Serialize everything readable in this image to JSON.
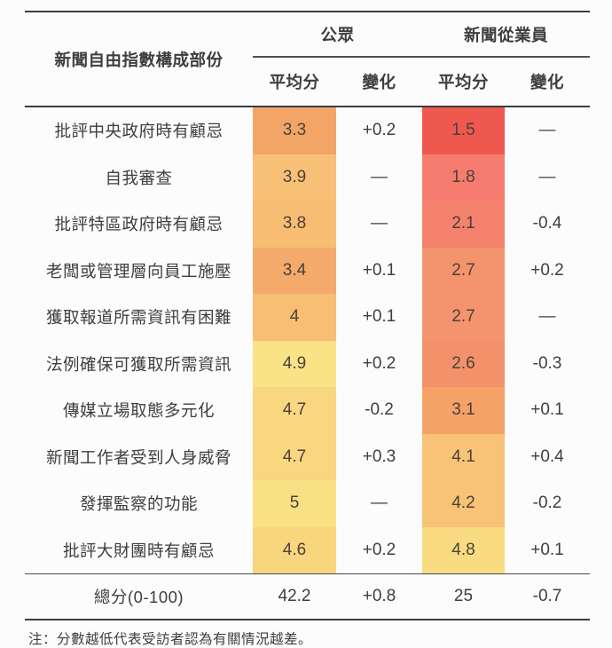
{
  "table": {
    "corner_label": "新聞自由指數構成部份",
    "groups": [
      {
        "label": "公眾"
      },
      {
        "label": "新聞從業員"
      }
    ],
    "sub_headers": [
      "平均分",
      "變化",
      "平均分",
      "變化"
    ],
    "rows": [
      {
        "label": "批評中央政府時有顧忌",
        "public_avg": "3.3",
        "public_color": "#f2a567",
        "public_change": "+0.2",
        "journalist_avg": "1.5",
        "journalist_color": "#ee584e",
        "journalist_change": "—"
      },
      {
        "label": "自我審查",
        "public_avg": "3.9",
        "public_color": "#f8c076",
        "public_change": "—",
        "journalist_avg": "1.8",
        "journalist_color": "#f57c6e",
        "journalist_change": "—"
      },
      {
        "label": "批評特區政府時有顧忌",
        "public_avg": "3.8",
        "public_color": "#f7bd73",
        "public_change": "—",
        "journalist_avg": "2.1",
        "journalist_color": "#f5826c",
        "journalist_change": "-0.4"
      },
      {
        "label": "老闆或管理層向員工施壓",
        "public_avg": "3.4",
        "public_color": "#f3aa6b",
        "public_change": "+0.1",
        "journalist_avg": "2.7",
        "journalist_color": "#f4946e",
        "journalist_change": "+0.2"
      },
      {
        "label": "獲取報道所需資訊有困難",
        "public_avg": "4",
        "public_color": "#f7be74",
        "public_change": "+0.1",
        "journalist_avg": "2.7",
        "journalist_color": "#f4946e",
        "journalist_change": "—"
      },
      {
        "label": "法例確保可獲取所需資訊",
        "public_avg": "4.9",
        "public_color": "#fae287",
        "public_change": "+0.2",
        "journalist_avg": "2.6",
        "journalist_color": "#f3916b",
        "journalist_change": "-0.3"
      },
      {
        "label": "傳媒立場取態多元化",
        "public_avg": "4.7",
        "public_color": "#f9d680",
        "public_change": "-0.2",
        "journalist_avg": "3.1",
        "journalist_color": "#f5a269",
        "journalist_change": "+0.1"
      },
      {
        "label": "新聞工作者受到人身威脅",
        "public_avg": "4.7",
        "public_color": "#f9d680",
        "public_change": "+0.3",
        "journalist_avg": "4.1",
        "journalist_color": "#f8c377",
        "journalist_change": "+0.4"
      },
      {
        "label": "發揮監察的功能",
        "public_avg": "5",
        "public_color": "#fae085",
        "public_change": "—",
        "journalist_avg": "4.2",
        "journalist_color": "#f8c376",
        "journalist_change": "-0.2"
      },
      {
        "label": "批評大財團時有顧忌",
        "public_avg": "4.6",
        "public_color": "#f8d67e",
        "public_change": "+0.2",
        "journalist_avg": "4.8",
        "journalist_color": "#f9dc81",
        "journalist_change": "+0.1"
      }
    ],
    "total": {
      "label": "總分(0-100)",
      "public_avg": "42.2",
      "public_change": "+0.8",
      "journalist_avg": "25",
      "journalist_change": "-0.7"
    }
  },
  "note": "注：分數越低代表受訪者認為有關情況越差。",
  "colors": {
    "rule_dark": "#3d3d3d",
    "rule_light": "#4f4f4f",
    "text": "#3e3e3e",
    "score_text": "#4a4138",
    "background": "#fcfcfc",
    "scale_low_red": "#ee584e",
    "scale_high_yellow": "#fae085"
  },
  "chart_data": {
    "type": "table",
    "title": "新聞自由指數構成部份",
    "column_groups": [
      "公眾",
      "新聞從業員"
    ],
    "columns": [
      "新聞自由指數構成部份",
      "公眾 平均分",
      "公眾 變化",
      "新聞從業員 平均分",
      "新聞從業員 變化"
    ],
    "rows": [
      [
        "批評中央政府時有顧忌",
        3.3,
        "+0.2",
        1.5,
        "—"
      ],
      [
        "自我審查",
        3.9,
        "—",
        1.8,
        "—"
      ],
      [
        "批評特區政府時有顧忌",
        3.8,
        "—",
        2.1,
        "-0.4"
      ],
      [
        "老闆或管理層向員工施壓",
        3.4,
        "+0.1",
        2.7,
        "+0.2"
      ],
      [
        "獲取報道所需資訊有困難",
        4,
        "+0.1",
        2.7,
        "—"
      ],
      [
        "法例確保可獲取所需資訊",
        4.9,
        "+0.2",
        2.6,
        "-0.3"
      ],
      [
        "傳媒立場取態多元化",
        4.7,
        "-0.2",
        3.1,
        "+0.1"
      ],
      [
        "新聞工作者受到人身威脅",
        4.7,
        "+0.3",
        4.1,
        "+0.4"
      ],
      [
        "發揮監察的功能",
        5,
        "—",
        4.2,
        "-0.2"
      ],
      [
        "批評大財團時有顧忌",
        4.6,
        "+0.2",
        4.8,
        "+0.1"
      ]
    ],
    "total_row": [
      "總分(0-100)",
      42.2,
      "+0.8",
      25,
      "-0.7"
    ],
    "note": "注：分數越低代表受訪者認為有關情況越差。",
    "color_scale": "avg-score cells shaded from red (low, worse) to yellow (high, better); change columns unshaded"
  }
}
